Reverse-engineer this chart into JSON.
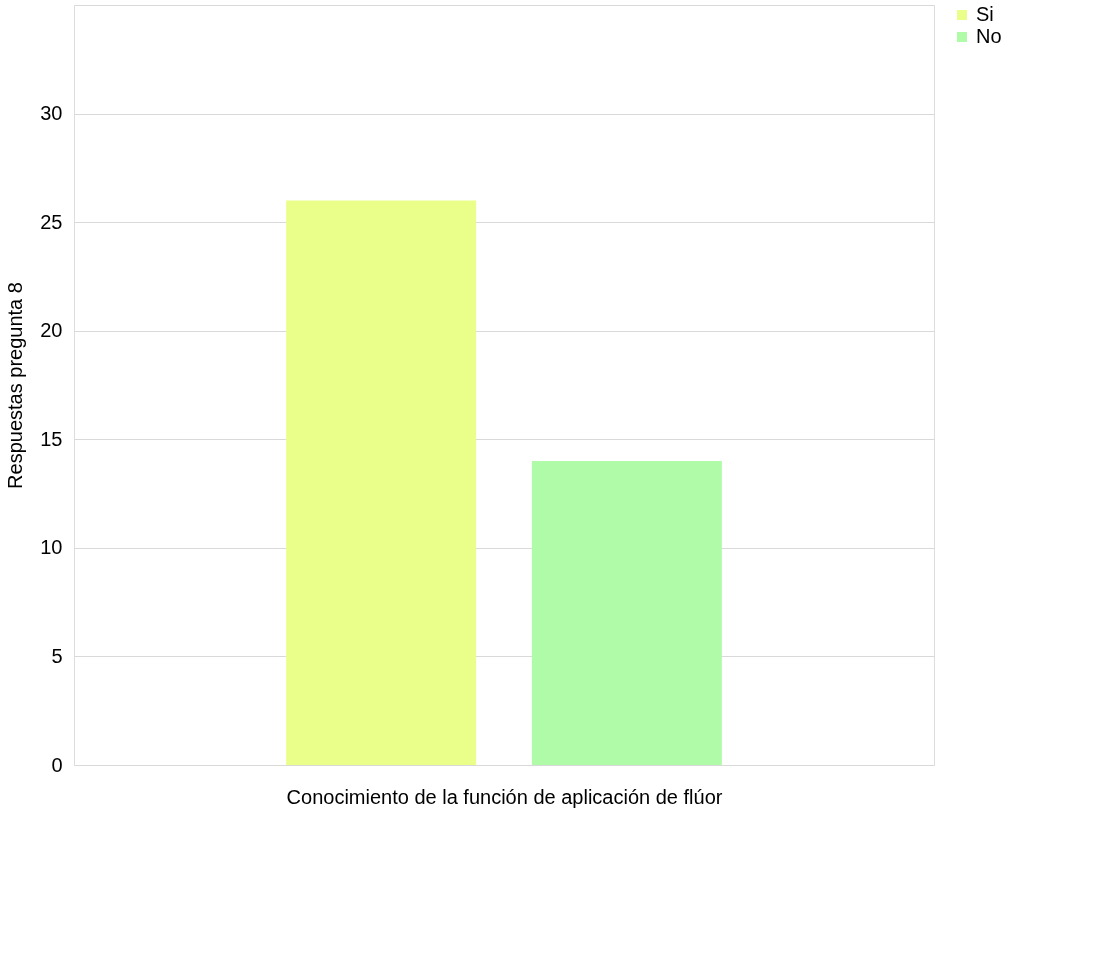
{
  "chart_data": {
    "type": "bar",
    "xlabel": "Conocimiento de la función de aplicación de flúor",
    "ylabel": "Respuestas pregunta 8",
    "categories": [
      null
    ],
    "series": [
      {
        "name": "Si",
        "color": "#e9ff8a",
        "values": [
          26
        ]
      },
      {
        "name": "No",
        "color": "#b0fba8",
        "values": [
          14
        ]
      }
    ],
    "ylim": [
      0,
      35
    ],
    "yticks": [
      0,
      5,
      10,
      15,
      20,
      25,
      30,
      {
        "value": 35,
        "label": null
      }
    ],
    "grid": "y",
    "legend": "right"
  }
}
